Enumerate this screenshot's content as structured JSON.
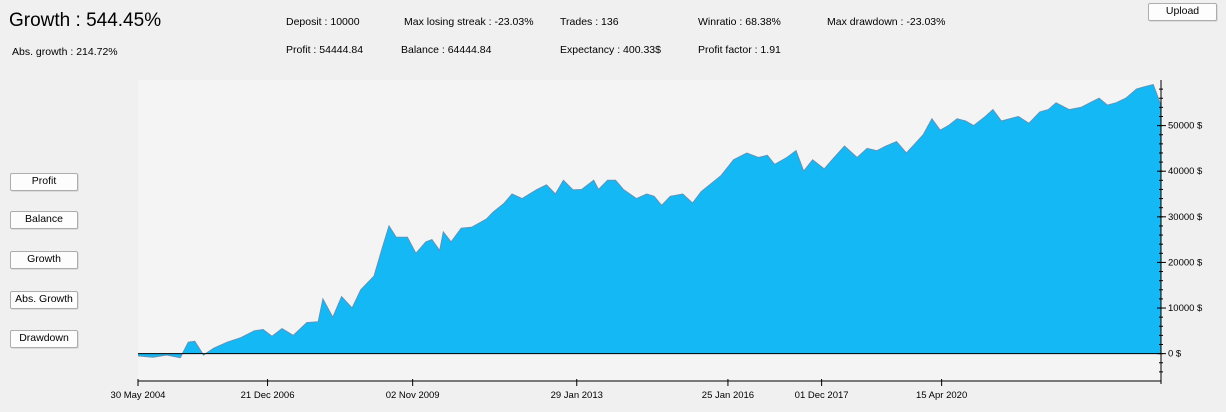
{
  "header": {
    "growth": "Growth : 544.45%",
    "abs_growth": "Abs. growth : 214.72%"
  },
  "stats": {
    "deposit": "Deposit : 10000",
    "max_losing_streak": "Max losing streak : -23.03%",
    "trades": "Trades : 136",
    "winratio": "Winratio : 68.38%",
    "max_drawdown": "Max drawdown : -23.03%",
    "profit": "Profit : 54444.84",
    "balance": "Balance : 64444.84",
    "expectancy": "Expectancy : 400.33$",
    "profit_factor": "Profit factor : 1.91"
  },
  "buttons": {
    "upload": "Upload",
    "profit": "Profit",
    "balance": "Balance",
    "growth": "Growth",
    "abs_growth": "Abs. Growth",
    "drawdown": "Drawdown"
  },
  "colors": {
    "fill": "#14b8f5",
    "line": "#5e94b8",
    "plot_bg": "#f4f4f4"
  },
  "chart_data": {
    "type": "area",
    "title": "",
    "xlabel": "",
    "ylabel": "",
    "ylim": [
      -6000,
      60000
    ],
    "xlim": [
      "2004-05-30",
      "2024-08-15"
    ],
    "ytick_values": [
      0,
      10000,
      20000,
      30000,
      40000,
      50000
    ],
    "ytick_labels": [
      "0 $",
      "10000 $",
      "20000 $",
      "30000 $",
      "40000 $",
      "50000 $"
    ],
    "xtick_values": [
      "2004-05-30",
      "2006-12-21",
      "2009-11-02",
      "2013-01-29",
      "2016-01-25",
      "2017-12-01",
      "2020-04-15"
    ],
    "xtick_labels": [
      "30 May 2004",
      "21 Dec 2006",
      "02 Nov 2009",
      "29 Jan 2013",
      "25 Jan 2016",
      "01 Dec 2017",
      "15 Apr 2020"
    ],
    "grid": false,
    "series": [
      {
        "x": [
          "2004-05-30",
          "2004-09-15",
          "2004-12-22",
          "2005-03-31",
          "2005-05-28",
          "2005-07-14",
          "2005-09-15",
          "2005-11-28",
          "2006-03-05",
          "2006-06-11",
          "2006-09-16",
          "2006-11-19",
          "2007-01-22",
          "2007-04-04",
          "2007-06-25",
          "2007-09-30",
          "2007-12-21",
          "2008-01-24",
          "2008-04-05",
          "2008-06-07",
          "2008-08-22",
          "2008-10-24",
          "2009-01-27",
          "2009-03-31",
          "2009-05-15",
          "2009-07-06",
          "2009-09-25",
          "2009-11-25",
          "2010-02-05",
          "2010-03-21",
          "2010-05-16",
          "2010-06-11",
          "2010-08-06",
          "2010-10-18",
          "2011-01-01",
          "2011-04-18",
          "2011-06-05",
          "2011-08-25",
          "2011-10-20",
          "2012-01-01",
          "2012-04-18",
          "2012-06-25",
          "2012-08-28",
          "2012-10-25",
          "2013-01-01",
          "2013-03-05",
          "2013-05-31",
          "2013-07-05",
          "2013-09-09",
          "2013-11-05",
          "2014-01-01",
          "2014-04-05",
          "2014-06-18",
          "2014-08-10",
          "2014-10-04",
          "2014-12-05",
          "2015-03-05",
          "2015-05-15",
          "2015-07-15",
          "2015-09-15",
          "2015-12-05",
          "2016-03-06",
          "2016-06-09",
          "2016-09-01",
          "2016-11-05",
          "2016-12-27",
          "2017-03-25",
          "2017-05-30",
          "2017-07-25",
          "2017-09-27",
          "2017-12-20",
          "2018-02-15",
          "2018-05-15",
          "2018-08-14",
          "2018-10-25",
          "2019-01-05",
          "2019-03-10",
          "2019-05-25",
          "2019-08-05",
          "2019-10-05",
          "2019-12-04",
          "2020-02-05",
          "2020-04-05",
          "2020-06-03",
          "2020-08-05",
          "2020-10-04",
          "2020-12-02",
          "2021-02-24",
          "2021-04-20",
          "2021-06-20",
          "2021-10-21",
          "2022-01-05",
          "2022-03-25",
          "2022-05-25",
          "2022-07-20",
          "2022-10-22",
          "2023-01-16",
          "2023-03-21",
          "2023-05-26",
          "2023-07-25",
          "2023-09-25",
          "2023-12-05",
          "2024-02-20",
          "2024-04-15",
          "2024-06-20",
          "2024-08-15"
        ],
        "y": [
          -500,
          -800,
          -300,
          -900,
          2500,
          2700,
          -300,
          1200,
          2500,
          3500,
          5000,
          5300,
          3800,
          5500,
          4000,
          6800,
          7000,
          12000,
          8000,
          12500,
          10000,
          14000,
          17000,
          23500,
          28000,
          25500,
          25500,
          22000,
          24500,
          25000,
          22600,
          26700,
          24500,
          27500,
          27700,
          29500,
          31000,
          33000,
          35000,
          34000,
          36000,
          37000,
          35000,
          38000,
          35900,
          36000,
          38000,
          36000,
          38000,
          38000,
          36000,
          34000,
          35000,
          34500,
          32500,
          34500,
          35000,
          33000,
          35500,
          37000,
          39000,
          42500,
          44000,
          43000,
          43500,
          41500,
          43000,
          44500,
          40000,
          42500,
          40500,
          42500,
          45500,
          43000,
          45000,
          44500,
          45500,
          46500,
          44000,
          46000,
          48000,
          51500,
          49000,
          50000,
          51500,
          51000,
          50000,
          52000,
          53500,
          51000,
          52000,
          50500,
          53000,
          53500,
          55000,
          53500,
          54000,
          55000,
          56000,
          54500,
          55000,
          56000,
          58000,
          58500,
          59000,
          54444
        ]
      }
    ]
  }
}
